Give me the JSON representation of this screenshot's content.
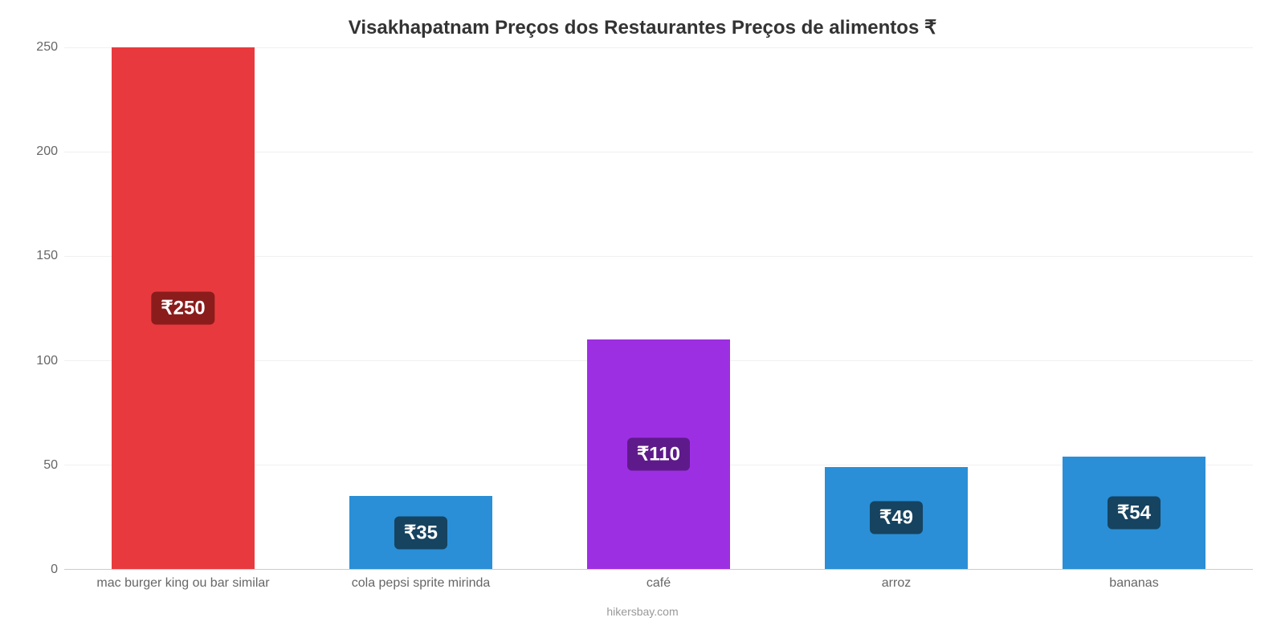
{
  "chart": {
    "type": "bar",
    "title": "Visakhapatnam Preços dos Restaurantes Preços de alimentos ₹",
    "title_fontsize": 24,
    "title_color": "#333333",
    "categories": [
      "mac burger king ou bar similar",
      "cola pepsi sprite mirinda",
      "café",
      "arroz",
      "bananas"
    ],
    "values": [
      250,
      35,
      110,
      49,
      54
    ],
    "value_labels": [
      "₹250",
      "₹35",
      "₹110",
      "₹49",
      "₹54"
    ],
    "bar_colors": [
      "#e83a3e",
      "#2a8fd6",
      "#9d2fe3",
      "#2a8fd6",
      "#2a8fd6"
    ],
    "badge_colors": [
      "#8a1c1c",
      "#154360",
      "#5e1a8a",
      "#154360",
      "#154360"
    ],
    "ylim": [
      0,
      250
    ],
    "ytick_step": 50,
    "y_ticks": [
      0,
      50,
      100,
      150,
      200,
      250
    ],
    "background_color": "#ffffff",
    "grid_color": "#f0f0f0",
    "axis_label_color": "#666666",
    "axis_label_fontsize": 16,
    "bar_width_pct": 12,
    "bar_gap_pct": 20,
    "value_label_fontsize": 24,
    "attribution": "hikersbay.com",
    "attribution_color": "#999999"
  }
}
